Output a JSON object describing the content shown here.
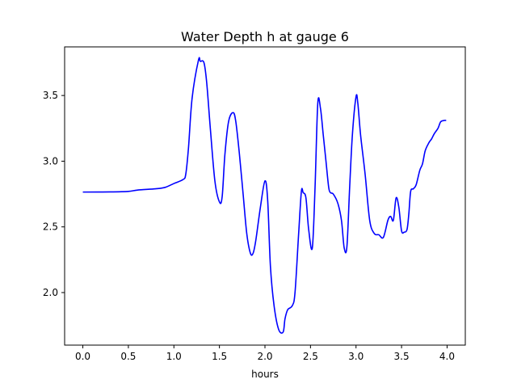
{
  "chart_data": {
    "type": "line",
    "title": "Water Depth h at gauge 6",
    "xlabel": "hours",
    "ylabel": "",
    "xlim": [
      -0.2,
      4.2
    ],
    "ylim": [
      1.6,
      3.87
    ],
    "xticks": [
      0.0,
      0.5,
      1.0,
      1.5,
      2.0,
      2.5,
      3.0,
      3.5,
      4.0
    ],
    "xtick_labels": [
      "0.0",
      "0.5",
      "1.0",
      "1.5",
      "2.0",
      "2.5",
      "3.0",
      "3.5",
      "4.0"
    ],
    "yticks": [
      2.0,
      2.5,
      3.0,
      3.5
    ],
    "ytick_labels": [
      "2.0",
      "2.5",
      "3.0",
      "3.5"
    ],
    "grid": false,
    "legend": "none",
    "colors": {
      "line": "#0000ff",
      "axes": "#000000",
      "background": "#ffffff"
    },
    "series": [
      {
        "x": [
          0.0,
          0.3,
          0.5,
          0.6,
          0.8,
          0.9,
          1.0,
          1.1,
          1.13,
          1.16,
          1.2,
          1.27,
          1.29,
          1.33,
          1.36,
          1.4,
          1.45,
          1.5,
          1.53,
          1.56,
          1.6,
          1.65,
          1.68,
          1.72,
          1.76,
          1.8,
          1.84,
          1.87,
          1.9,
          1.95,
          2.0,
          2.03,
          2.06,
          2.1,
          2.15,
          2.2,
          2.22,
          2.25,
          2.3,
          2.33,
          2.37,
          2.4,
          2.42,
          2.45,
          2.48,
          2.52,
          2.55,
          2.58,
          2.61,
          2.64,
          2.67,
          2.7,
          2.72,
          2.75,
          2.8,
          2.84,
          2.87,
          2.9,
          2.93,
          2.96,
          3.0,
          3.02,
          3.05,
          3.1,
          3.15,
          3.2,
          3.25,
          3.3,
          3.35,
          3.38,
          3.41,
          3.44,
          3.47,
          3.5,
          3.53,
          3.56,
          3.58,
          3.6,
          3.63,
          3.66,
          3.7,
          3.73,
          3.76,
          3.8,
          3.83,
          3.86,
          3.9,
          3.93,
          3.97,
          3.99
        ],
        "y": [
          2.765,
          2.766,
          2.77,
          2.78,
          2.79,
          2.8,
          2.83,
          2.86,
          2.9,
          3.1,
          3.48,
          3.77,
          3.76,
          3.75,
          3.6,
          3.25,
          2.85,
          2.69,
          2.73,
          3.05,
          3.3,
          3.37,
          3.3,
          3.05,
          2.75,
          2.45,
          2.3,
          2.3,
          2.4,
          2.65,
          2.85,
          2.7,
          2.2,
          1.9,
          1.72,
          1.7,
          1.8,
          1.87,
          1.9,
          2.0,
          2.45,
          2.77,
          2.76,
          2.72,
          2.48,
          2.34,
          2.8,
          3.44,
          3.4,
          3.2,
          3.0,
          2.8,
          2.76,
          2.75,
          2.68,
          2.55,
          2.34,
          2.35,
          2.8,
          3.2,
          3.49,
          3.44,
          3.2,
          2.9,
          2.55,
          2.45,
          2.44,
          2.42,
          2.55,
          2.58,
          2.55,
          2.72,
          2.65,
          2.47,
          2.46,
          2.48,
          2.6,
          2.77,
          2.79,
          2.82,
          2.93,
          2.98,
          3.08,
          3.14,
          3.17,
          3.21,
          3.25,
          3.3,
          3.31,
          3.31
        ]
      }
    ]
  }
}
